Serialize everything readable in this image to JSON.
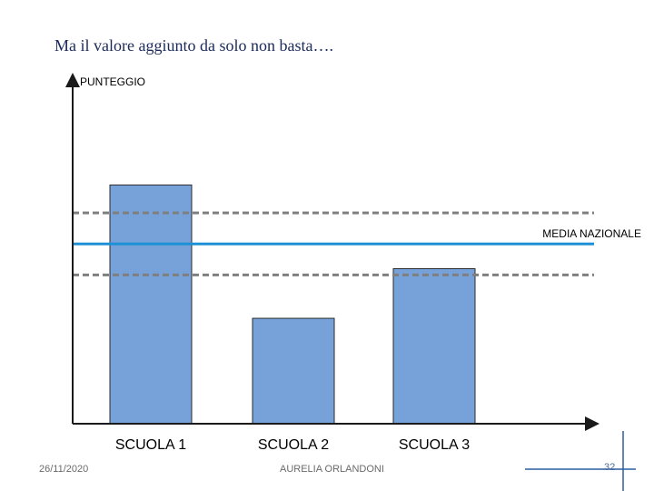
{
  "slide": {
    "title": "Ma il valore aggiunto da solo non basta….",
    "footer_date": "26/11/2020",
    "footer_author": "AURELIA ORLANDONI",
    "page_number": "32"
  },
  "colors": {
    "bar_fill": "#77a1d9",
    "bar_stroke": "#2b2b2b",
    "axis": "#1a1a1a",
    "reference_line": "#1e90d6",
    "band_line": "#7f7f7f",
    "decor_line": "#2a5fa0"
  },
  "chart_data": {
    "type": "bar",
    "title": "",
    "xlabel": "",
    "ylabel": "PUNTEGGIO",
    "categories": [
      "SCUOLA 1",
      "SCUOLA 2",
      "SCUOLA 3"
    ],
    "values": [
      77,
      34,
      50
    ],
    "ylim": [
      0,
      100
    ],
    "grid": false,
    "reference_line": {
      "label": "MEDIA NAZIONALE",
      "value": 58,
      "style": "solid"
    },
    "band": {
      "lower": 48,
      "upper": 68,
      "style": "dashed"
    }
  }
}
